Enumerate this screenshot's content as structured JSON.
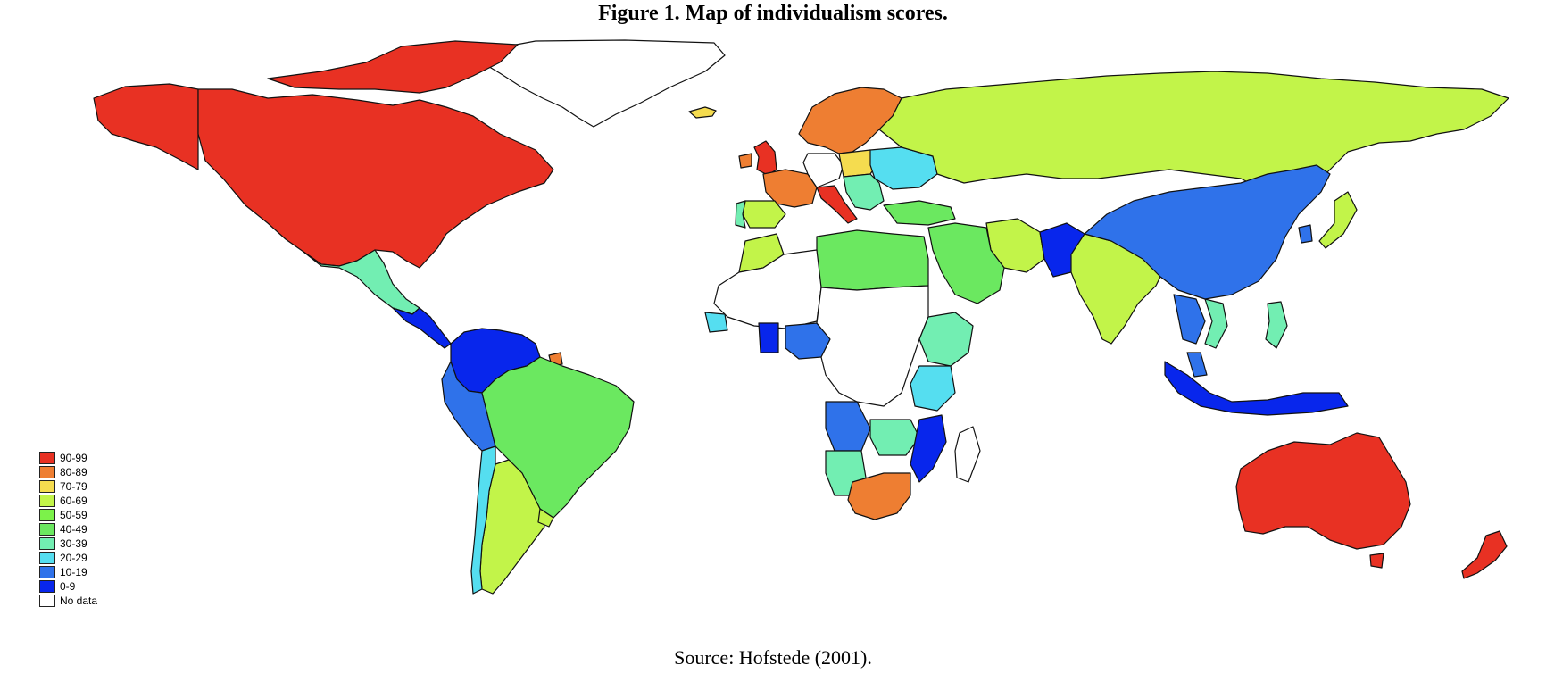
{
  "figure": {
    "title": "Figure 1. Map of individualism scores.",
    "source": "Source: Hofstede (2001)."
  },
  "legend": {
    "items": [
      {
        "label": "90-99",
        "color": "#e83123"
      },
      {
        "label": "80-89",
        "color": "#ee7e32"
      },
      {
        "label": "70-79",
        "color": "#f5dc4f"
      },
      {
        "label": "60-69",
        "color": "#c2f449"
      },
      {
        "label": "50-59",
        "color": "#7cf24a"
      },
      {
        "label": "40-49",
        "color": "#6be860"
      },
      {
        "label": "30-39",
        "color": "#72eeb2"
      },
      {
        "label": "20-29",
        "color": "#55def0"
      },
      {
        "label": "10-19",
        "color": "#2f72ea"
      },
      {
        "label": "0-9",
        "color": "#0826ec"
      },
      {
        "label": "No data",
        "color": "#ffffff"
      }
    ]
  },
  "regions": [
    {
      "name": "North America (USA, Canada)",
      "band": "90-99"
    },
    {
      "name": "Alaska",
      "band": "90-99"
    },
    {
      "name": "Canadian Arctic Islands",
      "band": "90-99"
    },
    {
      "name": "Greenland",
      "band": "No data"
    },
    {
      "name": "Iceland",
      "band": "70-79"
    },
    {
      "name": "Mexico",
      "band": "30-39"
    },
    {
      "name": "Central America",
      "band": "0-9"
    },
    {
      "name": "Venezuela / Colombia",
      "band": "0-9"
    },
    {
      "name": "Ecuador",
      "band": "10-19"
    },
    {
      "name": "Peru",
      "band": "10-19"
    },
    {
      "name": "Brazil",
      "band": "40-49"
    },
    {
      "name": "Argentina",
      "band": "60-69"
    },
    {
      "name": "Chile",
      "band": "20-29"
    },
    {
      "name": "Uruguay",
      "band": "60-69"
    },
    {
      "name": "Suriname",
      "band": "80-89"
    },
    {
      "name": "United Kingdom",
      "band": "90-99"
    },
    {
      "name": "Ireland",
      "band": "80-89"
    },
    {
      "name": "Scandinavia",
      "band": "80-89"
    },
    {
      "name": "France",
      "band": "80-89"
    },
    {
      "name": "Italy",
      "band": "90-99"
    },
    {
      "name": "Spain",
      "band": "60-69"
    },
    {
      "name": "Portugal",
      "band": "30-39"
    },
    {
      "name": "Poland",
      "band": "70-79"
    },
    {
      "name": "Ukraine / Belarus",
      "band": "20-29"
    },
    {
      "name": "Balkans",
      "band": "30-39"
    },
    {
      "name": "Turkey",
      "band": "40-49"
    },
    {
      "name": "Russia",
      "band": "60-69"
    },
    {
      "name": "China",
      "band": "10-19"
    },
    {
      "name": "Japan",
      "band": "60-69"
    },
    {
      "name": "South Korea",
      "band": "10-19"
    },
    {
      "name": "Pakistan",
      "band": "0-9"
    },
    {
      "name": "India",
      "band": "60-69"
    },
    {
      "name": "Iran",
      "band": "60-69"
    },
    {
      "name": "Arab countries",
      "band": "40-49"
    },
    {
      "name": "Libya / Egypt",
      "band": "40-49"
    },
    {
      "name": "Morocco",
      "band": "60-69"
    },
    {
      "name": "Nigeria",
      "band": "10-19"
    },
    {
      "name": "Ghana",
      "band": "0-9"
    },
    {
      "name": "Senegal",
      "band": "20-29"
    },
    {
      "name": "Ethiopia / Kenya",
      "band": "30-39"
    },
    {
      "name": "Tanzania",
      "band": "20-29"
    },
    {
      "name": "Angola",
      "band": "10-19"
    },
    {
      "name": "Zambia / Zimbabwe",
      "band": "30-39"
    },
    {
      "name": "Mozambique",
      "band": "0-9"
    },
    {
      "name": "Namibia",
      "band": "30-39"
    },
    {
      "name": "South Africa",
      "band": "80-89"
    },
    {
      "name": "Madagascar",
      "band": "No data"
    },
    {
      "name": "Thailand",
      "band": "10-19"
    },
    {
      "name": "Vietnam",
      "band": "30-39"
    },
    {
      "name": "Philippines",
      "band": "30-39"
    },
    {
      "name": "Malaysia",
      "band": "10-19"
    },
    {
      "name": "Indonesia",
      "band": "0-9"
    },
    {
      "name": "Australia",
      "band": "90-99"
    },
    {
      "name": "New Zealand",
      "band": "90-99"
    }
  ]
}
